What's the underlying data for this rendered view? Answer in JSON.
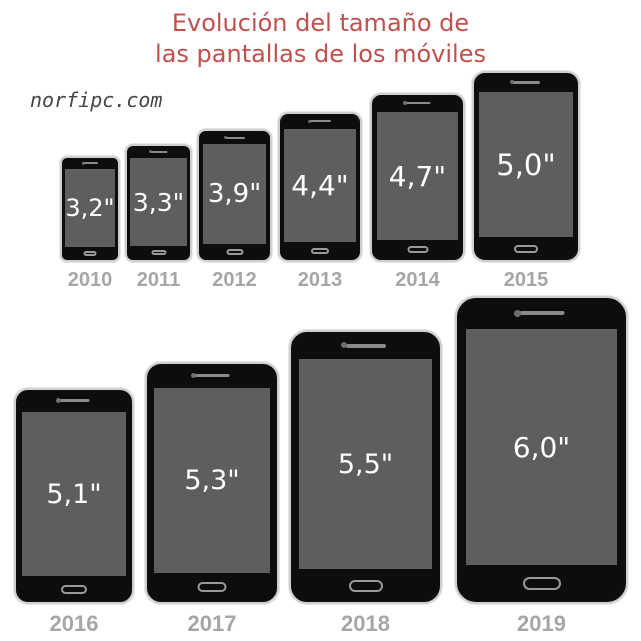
{
  "title": {
    "line1": "Evolución del tamaño de",
    "line2": "las pantallas de los móviles"
  },
  "brand": "norfipc.com",
  "phones": [
    {
      "year": "2010",
      "size": "3,2\""
    },
    {
      "year": "2011",
      "size": "3,3\""
    },
    {
      "year": "2012",
      "size": "3,9\""
    },
    {
      "year": "2013",
      "size": "4,4\""
    },
    {
      "year": "2014",
      "size": "4,7\""
    },
    {
      "year": "2015",
      "size": "5,0\""
    },
    {
      "year": "2016",
      "size": "5,1\""
    },
    {
      "year": "2017",
      "size": "5,3\""
    },
    {
      "year": "2018",
      "size": "5,5\""
    },
    {
      "year": "2019",
      "size": "6,0\""
    }
  ]
}
